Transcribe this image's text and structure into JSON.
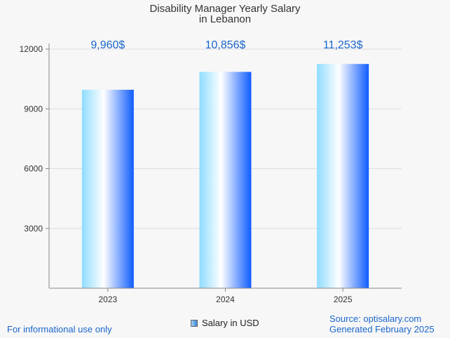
{
  "title": [
    "Disability Manager Yearly Salary",
    "in Lebanon"
  ],
  "footer": {
    "left": "For informational use only",
    "source": "Source: optisalary.com",
    "generated": "Generated February 2025"
  },
  "legend": {
    "label": "Salary in USD"
  },
  "colors": {
    "accent": "#1a66cc",
    "bar_light": "#8fdcff",
    "bar_mid": "#ffffff",
    "bar_dark": "#0f5cff",
    "grid": "#dddddd",
    "axis": "#888888"
  },
  "chart_data": {
    "type": "bar",
    "categories": [
      "2023",
      "2024",
      "2025"
    ],
    "series": [
      {
        "name": "Salary in USD",
        "values": [
          9960,
          10856,
          11253
        ]
      }
    ],
    "data_labels": [
      "9,960$",
      "10,856$",
      "11,253$"
    ],
    "y_ticks": [
      "3000",
      "6000",
      "9000",
      "12000"
    ],
    "ylim": [
      0,
      12000
    ],
    "grid": true,
    "legend_position": "bottom"
  }
}
